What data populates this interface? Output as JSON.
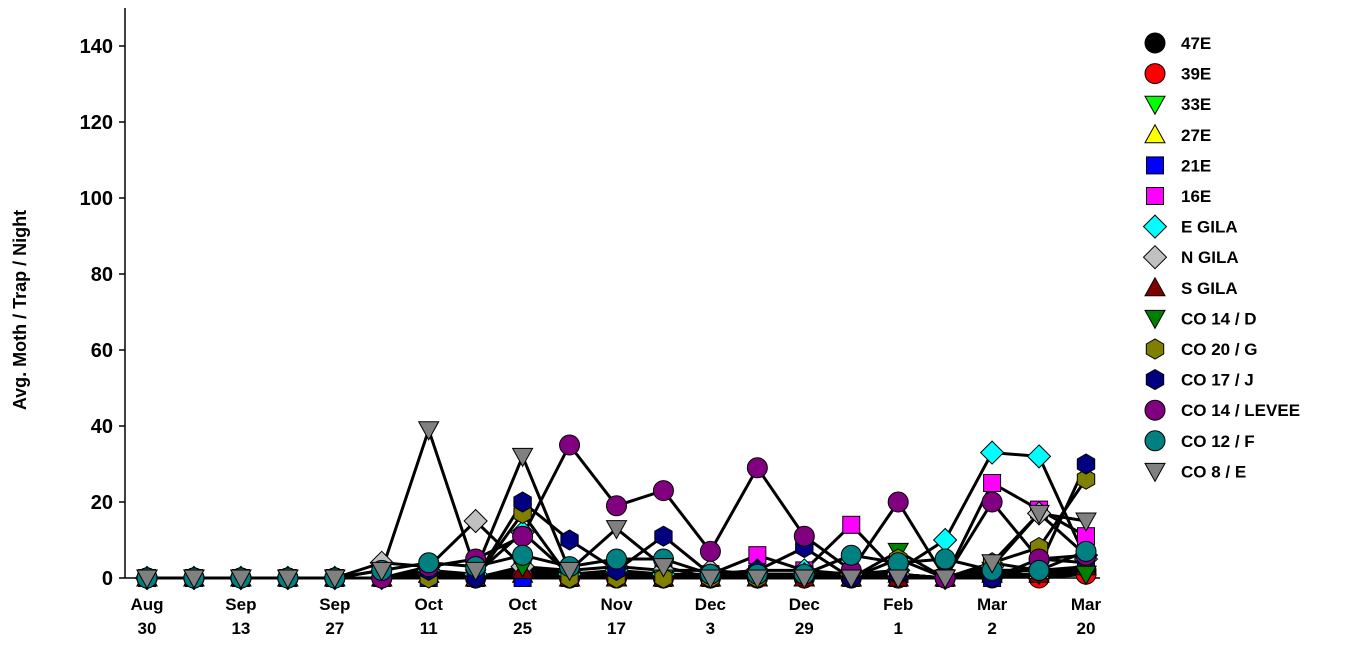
{
  "chart_data": {
    "type": "line",
    "title": "",
    "xlabel": "",
    "ylabel": "Avg. Moth / Trap / Night",
    "ylim": [
      0,
      150
    ],
    "yticks": [
      0,
      20,
      40,
      60,
      80,
      100,
      120,
      140
    ],
    "grid": false,
    "legend_position": "right",
    "x_tick_labels": [
      {
        "month": "Aug",
        "day": "30",
        "index": 0
      },
      {
        "month": "Sep",
        "day": "13",
        "index": 2
      },
      {
        "month": "Sep",
        "day": "27",
        "index": 4
      },
      {
        "month": "Oct",
        "day": "11",
        "index": 6
      },
      {
        "month": "Oct",
        "day": "25",
        "index": 8
      },
      {
        "month": "Nov",
        "day": "17",
        "index": 10
      },
      {
        "month": "Dec",
        "day": "3",
        "index": 12
      },
      {
        "month": "Dec",
        "day": "29",
        "index": 14
      },
      {
        "month": "Feb",
        "day": "1",
        "index": 16
      },
      {
        "month": "Mar",
        "day": "2",
        "index": 18
      },
      {
        "month": "Mar",
        "day": "20",
        "index": 20
      }
    ],
    "num_points": 21,
    "series": [
      {
        "name": "47E",
        "marker": "circle",
        "color": "#000000",
        "values": [
          0,
          0,
          0,
          0,
          0,
          0,
          1,
          0,
          1,
          0,
          0,
          0,
          0,
          0,
          0,
          0,
          0,
          0,
          0,
          1,
          2
        ]
      },
      {
        "name": "39E",
        "marker": "circle",
        "color": "#ff0000",
        "values": [
          0,
          0,
          0,
          0,
          0,
          0,
          1,
          0,
          1,
          0,
          0,
          0,
          0,
          0,
          0,
          0,
          0,
          0,
          1,
          0,
          1
        ]
      },
      {
        "name": "33E",
        "marker": "triangle-down",
        "color": "#00ff00",
        "values": [
          0,
          0,
          0,
          0,
          0,
          0,
          1,
          0,
          1,
          0,
          1,
          0,
          0,
          0,
          0,
          0,
          1,
          0,
          1,
          1,
          1
        ]
      },
      {
        "name": "27E",
        "marker": "triangle-up",
        "color": "#ffff00",
        "values": [
          0,
          0,
          0,
          0,
          0,
          0,
          1,
          0,
          1,
          0,
          0,
          0,
          0,
          0,
          0,
          0,
          1,
          0,
          4,
          2,
          3
        ]
      },
      {
        "name": "21E",
        "marker": "square",
        "color": "#0000ff",
        "values": [
          0,
          0,
          0,
          0,
          0,
          0,
          0,
          0,
          0,
          0,
          1,
          1,
          0,
          1,
          1,
          0,
          0,
          0,
          0,
          5,
          4
        ]
      },
      {
        "name": "16E",
        "marker": "square",
        "color": "#ff00ff",
        "values": [
          0,
          0,
          0,
          0,
          0,
          0,
          1,
          0,
          3,
          1,
          1,
          0,
          1,
          6,
          2,
          14,
          1,
          0,
          25,
          18,
          11
        ]
      },
      {
        "name": "E GILA",
        "marker": "diamond",
        "color": "#00ffff",
        "values": [
          0,
          0,
          0,
          0,
          0,
          0,
          2,
          1,
          12,
          1,
          2,
          1,
          1,
          2,
          2,
          1,
          2,
          10,
          33,
          32,
          5
        ]
      },
      {
        "name": "N GILA",
        "marker": "diamond",
        "color": "#c0c0c0",
        "values": [
          0,
          0,
          0,
          0,
          0,
          4,
          3,
          15,
          3,
          2,
          3,
          2,
          2,
          1,
          1,
          1,
          1,
          0,
          3,
          17,
          6
        ]
      },
      {
        "name": "S GILA",
        "marker": "triangle-up",
        "color": "#800000",
        "values": [
          0,
          0,
          0,
          0,
          0,
          0,
          1,
          0,
          2,
          0,
          0,
          0,
          0,
          0,
          0,
          0,
          0,
          0,
          1,
          1,
          3
        ]
      },
      {
        "name": "CO 14 / D",
        "marker": "triangle-down",
        "color": "#008000",
        "values": [
          0,
          0,
          0,
          0,
          0,
          0,
          1,
          0,
          3,
          0,
          1,
          0,
          0,
          0,
          0,
          0,
          7,
          0,
          2,
          2,
          1
        ]
      },
      {
        "name": "CO 20 / G",
        "marker": "hexagon",
        "color": "#808000",
        "values": [
          0,
          0,
          0,
          0,
          0,
          0,
          0,
          0,
          17,
          0,
          0,
          0,
          0,
          0,
          1,
          0,
          5,
          0,
          4,
          8,
          26
        ]
      },
      {
        "name": "CO 17 / J",
        "marker": "hexagon",
        "color": "#000080",
        "values": [
          0,
          0,
          0,
          0,
          0,
          0,
          2,
          0,
          20,
          10,
          2,
          11,
          1,
          2,
          8,
          0,
          1,
          0,
          0,
          3,
          30
        ]
      },
      {
        "name": "CO 14 / LEVEE",
        "marker": "circle",
        "color": "#800080",
        "values": [
          0,
          0,
          0,
          0,
          0,
          0,
          3,
          5,
          11,
          35,
          19,
          23,
          7,
          29,
          11,
          2,
          20,
          0,
          20,
          5,
          6
        ]
      },
      {
        "name": "CO 12 / F",
        "marker": "circle",
        "color": "#008080",
        "values": [
          0,
          0,
          0,
          0,
          0,
          2,
          4,
          3,
          6,
          3,
          5,
          5,
          1,
          1,
          1,
          6,
          4,
          5,
          2,
          2,
          7
        ]
      },
      {
        "name": "CO 8 / E",
        "marker": "triangle-down",
        "color": "#808080",
        "values": [
          0,
          0,
          0,
          0,
          0,
          2,
          39,
          2,
          32,
          2,
          13,
          3,
          0,
          0,
          0,
          0,
          0,
          0,
          4,
          17,
          15
        ]
      }
    ]
  }
}
